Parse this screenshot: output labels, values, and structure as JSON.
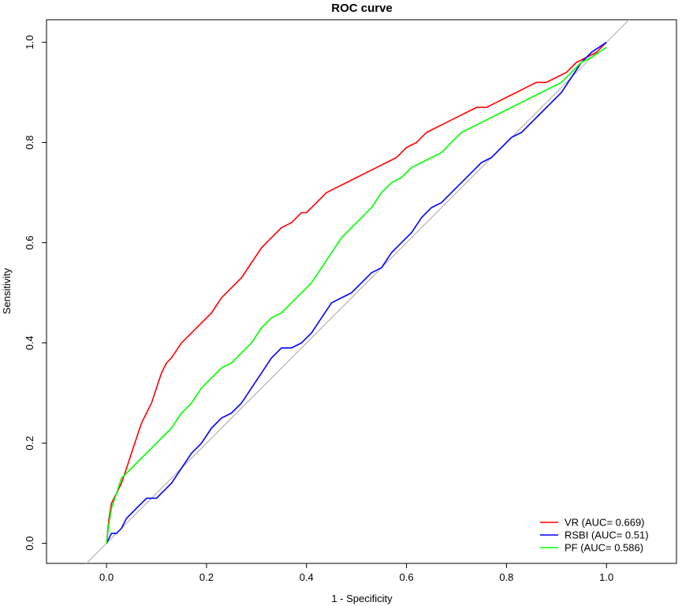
{
  "chart_data": {
    "type": "line",
    "title": "ROC curve",
    "xlabel": "1 - Specificity",
    "ylabel": "Sensitivity",
    "xlim": [
      -0.12,
      1.14
    ],
    "ylim": [
      -0.04,
      1.045
    ],
    "xticks": [
      "0.0",
      "0.2",
      "0.4",
      "0.6",
      "0.8",
      "1.0"
    ],
    "yticks": [
      "0.0",
      "0.2",
      "0.4",
      "0.6",
      "0.8",
      "1.0"
    ],
    "reference_line": {
      "from": [
        -0.04,
        -0.04
      ],
      "to": [
        1.045,
        1.045
      ],
      "color": "#b3b3b3"
    },
    "legend_position": "bottom-right",
    "series": [
      {
        "name": "VR (AUC= 0.669)",
        "color": "#ff0000",
        "x": [
          0,
          0.005,
          0.01,
          0.02,
          0.03,
          0.04,
          0.05,
          0.06,
          0.07,
          0.08,
          0.09,
          0.1,
          0.11,
          0.12,
          0.13,
          0.15,
          0.17,
          0.19,
          0.21,
          0.23,
          0.25,
          0.27,
          0.29,
          0.31,
          0.33,
          0.35,
          0.37,
          0.39,
          0.4,
          0.42,
          0.44,
          0.46,
          0.48,
          0.5,
          0.52,
          0.54,
          0.56,
          0.58,
          0.6,
          0.62,
          0.64,
          0.66,
          0.68,
          0.7,
          0.72,
          0.74,
          0.76,
          0.78,
          0.8,
          0.82,
          0.84,
          0.86,
          0.88,
          0.9,
          0.92,
          0.94,
          0.96,
          0.98,
          1.0
        ],
        "y": [
          0,
          0.05,
          0.08,
          0.1,
          0.12,
          0.15,
          0.18,
          0.21,
          0.24,
          0.26,
          0.28,
          0.31,
          0.34,
          0.36,
          0.37,
          0.4,
          0.42,
          0.44,
          0.46,
          0.49,
          0.51,
          0.53,
          0.56,
          0.59,
          0.61,
          0.63,
          0.64,
          0.66,
          0.66,
          0.68,
          0.7,
          0.71,
          0.72,
          0.73,
          0.74,
          0.75,
          0.76,
          0.77,
          0.79,
          0.8,
          0.82,
          0.83,
          0.84,
          0.85,
          0.86,
          0.87,
          0.87,
          0.88,
          0.89,
          0.9,
          0.91,
          0.92,
          0.92,
          0.93,
          0.94,
          0.96,
          0.97,
          0.98,
          1.0
        ]
      },
      {
        "name": "RSBI (AUC= 0.51)",
        "color": "#0000ff",
        "x": [
          0,
          0.01,
          0.02,
          0.03,
          0.04,
          0.05,
          0.06,
          0.07,
          0.08,
          0.09,
          0.1,
          0.11,
          0.12,
          0.13,
          0.15,
          0.17,
          0.19,
          0.21,
          0.23,
          0.25,
          0.27,
          0.29,
          0.31,
          0.33,
          0.35,
          0.37,
          0.39,
          0.41,
          0.43,
          0.45,
          0.47,
          0.49,
          0.51,
          0.53,
          0.55,
          0.57,
          0.59,
          0.61,
          0.63,
          0.65,
          0.67,
          0.69,
          0.71,
          0.73,
          0.75,
          0.77,
          0.79,
          0.81,
          0.83,
          0.85,
          0.87,
          0.89,
          0.91,
          0.93,
          0.95,
          0.97,
          1.0
        ],
        "y": [
          0,
          0.02,
          0.02,
          0.03,
          0.05,
          0.06,
          0.07,
          0.08,
          0.09,
          0.09,
          0.09,
          0.1,
          0.11,
          0.12,
          0.15,
          0.18,
          0.2,
          0.23,
          0.25,
          0.26,
          0.28,
          0.31,
          0.34,
          0.37,
          0.39,
          0.39,
          0.4,
          0.42,
          0.45,
          0.48,
          0.49,
          0.5,
          0.52,
          0.54,
          0.55,
          0.58,
          0.6,
          0.62,
          0.65,
          0.67,
          0.68,
          0.7,
          0.72,
          0.74,
          0.76,
          0.77,
          0.79,
          0.81,
          0.82,
          0.84,
          0.86,
          0.88,
          0.9,
          0.93,
          0.96,
          0.98,
          1.0
        ]
      },
      {
        "name": "PF (AUC= 0.586)",
        "color": "#00ff00",
        "x": [
          0,
          0.005,
          0.01,
          0.02,
          0.03,
          0.05,
          0.07,
          0.09,
          0.11,
          0.13,
          0.15,
          0.17,
          0.19,
          0.21,
          0.23,
          0.25,
          0.27,
          0.29,
          0.31,
          0.33,
          0.35,
          0.37,
          0.39,
          0.41,
          0.43,
          0.45,
          0.47,
          0.49,
          0.51,
          0.53,
          0.55,
          0.57,
          0.59,
          0.61,
          0.63,
          0.65,
          0.67,
          0.69,
          0.71,
          0.73,
          0.75,
          0.77,
          0.79,
          0.81,
          0.83,
          0.85,
          0.87,
          0.89,
          0.91,
          0.93,
          0.95,
          0.97,
          1.0
        ],
        "y": [
          0,
          0.04,
          0.07,
          0.1,
          0.13,
          0.15,
          0.17,
          0.19,
          0.21,
          0.23,
          0.26,
          0.28,
          0.31,
          0.33,
          0.35,
          0.36,
          0.38,
          0.4,
          0.43,
          0.45,
          0.46,
          0.48,
          0.5,
          0.52,
          0.55,
          0.58,
          0.61,
          0.63,
          0.65,
          0.67,
          0.7,
          0.72,
          0.73,
          0.75,
          0.76,
          0.77,
          0.78,
          0.8,
          0.82,
          0.83,
          0.84,
          0.85,
          0.86,
          0.87,
          0.88,
          0.89,
          0.9,
          0.91,
          0.92,
          0.94,
          0.96,
          0.97,
          0.99
        ]
      }
    ]
  }
}
